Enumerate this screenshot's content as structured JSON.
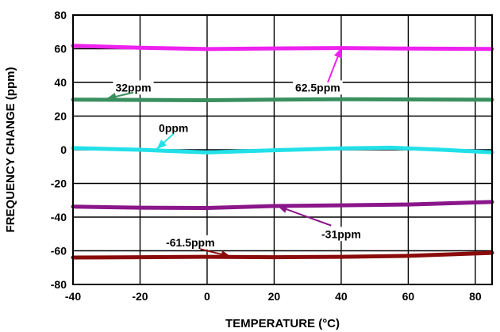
{
  "chart_data": {
    "type": "line",
    "title": "",
    "xlabel": "TEMPERATURE (°C)",
    "ylabel": "FREQUENCY CHANGE (ppm)",
    "xlim": [
      -40,
      85
    ],
    "ylim": [
      -80,
      80
    ],
    "x_ticks": [
      -40,
      -20,
      0,
      20,
      40,
      60,
      80
    ],
    "y_ticks": [
      80,
      60,
      40,
      20,
      0,
      -20,
      -40,
      -60,
      -80
    ],
    "x_tick_labels": [
      "-40",
      "-20",
      "0",
      "20",
      "40",
      "60",
      "80"
    ],
    "y_tick_labels": [
      "80",
      "60",
      "40",
      "20",
      "0",
      "-20",
      "-40",
      "-60",
      "-80"
    ],
    "grid": true,
    "series": [
      {
        "color": "#ee22ee",
        "x": [
          -40,
          -20,
          0,
          20,
          40,
          60,
          85
        ],
        "y": [
          61.8,
          60.6,
          59.8,
          60.2,
          60.4,
          60.1,
          59.9
        ]
      },
      {
        "color": "#3a8f5f",
        "x": [
          -40,
          -20,
          0,
          20,
          40,
          60,
          85
        ],
        "y": [
          29.8,
          29.6,
          29.4,
          29.8,
          30.0,
          29.9,
          29.7
        ]
      },
      {
        "color": "#22e0e8",
        "x": [
          -40,
          -20,
          -10,
          0,
          20,
          40,
          55,
          70,
          85
        ],
        "y": [
          1.0,
          0.0,
          -0.8,
          -1.6,
          -0.3,
          0.8,
          1.2,
          0.0,
          -1.5
        ]
      },
      {
        "color": "#8a168a",
        "x": [
          -40,
          -20,
          0,
          20,
          40,
          60,
          85
        ],
        "y": [
          -33.8,
          -34.4,
          -34.6,
          -33.4,
          -33.0,
          -32.5,
          -31.0
        ]
      },
      {
        "color": "#8b0a0a",
        "x": [
          -40,
          -20,
          0,
          20,
          40,
          60,
          85
        ],
        "y": [
          -64.0,
          -63.8,
          -63.6,
          -63.8,
          -63.6,
          -63.0,
          -61.2
        ]
      }
    ],
    "annotations": [
      {
        "text": "32ppm",
        "text_at": [
          -22,
          37
        ],
        "arrow_from": [
          -22,
          34
        ],
        "arrow_to": [
          -30,
          30.3
        ]
      },
      {
        "text": "62.5ppm",
        "text_at": [
          33,
          37
        ],
        "arrow_from": [
          36,
          40
        ],
        "arrow_to": [
          40,
          60.5
        ]
      },
      {
        "text": "0ppm",
        "text_at": [
          -10,
          13
        ],
        "arrow_from": [
          -10,
          9.5
        ],
        "arrow_to": [
          -15,
          0.5
        ]
      },
      {
        "text": "-61.5ppm",
        "text_at": [
          -5,
          -55
        ],
        "arrow_from": [
          -2,
          -59
        ],
        "arrow_to": [
          7,
          -63.4
        ]
      },
      {
        "text": "-31ppm",
        "text_at": [
          40,
          -50
        ],
        "arrow_from": [
          37,
          -45
        ],
        "arrow_to": [
          21,
          -33.4
        ]
      }
    ]
  }
}
